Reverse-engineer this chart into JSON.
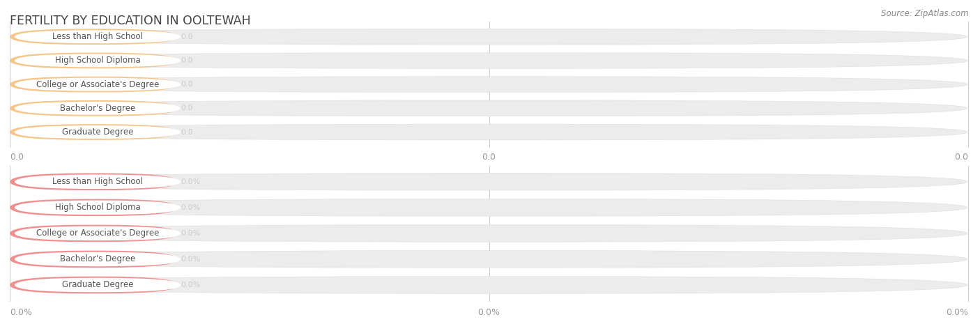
{
  "title": "FERTILITY BY EDUCATION IN OOLTEWAH",
  "source": "Source: ZipAtlas.com",
  "categories": [
    "Less than High School",
    "High School Diploma",
    "College or Associate's Degree",
    "Bachelor's Degree",
    "Graduate Degree"
  ],
  "top_labels": [
    "0.0",
    "0.0",
    "0.0",
    "0.0",
    "0.0"
  ],
  "bottom_labels": [
    "0.0%",
    "0.0%",
    "0.0%",
    "0.0%",
    "0.0%"
  ],
  "top_bar_color": "#F5C58A",
  "top_bar_bg": "#ECECEC",
  "bottom_bar_color": "#F09090",
  "bottom_bar_bg": "#ECECEC",
  "label_bg": "#FFFFFF",
  "title_color": "#444444",
  "source_color": "#888888",
  "label_text_color": "#555555",
  "value_label_color": "#CCCCCC",
  "tick_color": "#999999",
  "grid_color": "#CCCCCC",
  "background_color": "#FFFFFF",
  "top_axis_ticks": [
    "0.0",
    "0.0",
    "0.0"
  ],
  "bottom_axis_ticks": [
    "0.0%",
    "0.0%",
    "0.0%"
  ],
  "fig_width": 14.06,
  "fig_height": 4.75
}
